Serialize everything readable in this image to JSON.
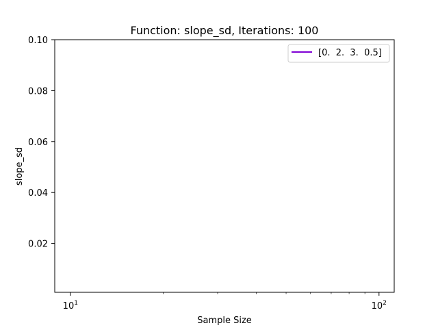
{
  "chart_data": {
    "type": "line",
    "title": "Function: slope_sd, Iterations: 100",
    "xlabel": "Sample Size",
    "ylabel": "slope_sd",
    "xscale": "log",
    "xlim": [
      8.9,
      112
    ],
    "ylim": [
      0.0008,
      0.1
    ],
    "x_ticks": [
      {
        "value": 10,
        "base": "10",
        "exp": "1"
      },
      {
        "value": 100,
        "base": "10",
        "exp": "2"
      }
    ],
    "x_minor_ticks": [
      20,
      30,
      40,
      50,
      60,
      70,
      80,
      90
    ],
    "y_ticks": [
      {
        "value": 0.02,
        "label": "0.02"
      },
      {
        "value": 0.04,
        "label": "0.04"
      },
      {
        "value": 0.06,
        "label": "0.06"
      },
      {
        "value": 0.08,
        "label": "0.08"
      },
      {
        "value": 0.1,
        "label": "0.10"
      }
    ],
    "grid": false,
    "legend_position": "top-right",
    "series": [
      {
        "name": "[0.  2.  3.  0.5]",
        "color": "#7f00d4",
        "x": [],
        "y": []
      }
    ]
  }
}
